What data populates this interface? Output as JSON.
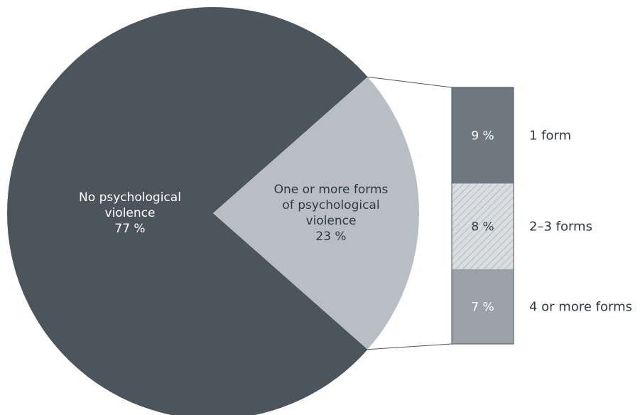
{
  "chart_data": {
    "type": "bar-of-pie",
    "pie": [
      {
        "label_lines": [
          "No psychological",
          "violence"
        ],
        "value": 77,
        "value_label": "77 %",
        "color": "#4b555b"
      },
      {
        "label_lines": [
          "One or more forms",
          "of psychological",
          "violence"
        ],
        "value": 23,
        "value_label": "23 %",
        "color": "#b8bfc4"
      }
    ],
    "breakdown": [
      {
        "category": "1 form",
        "value": 9,
        "value_label": "9 %",
        "fill": "solid",
        "color": "#6e787e"
      },
      {
        "category": "2–3 forms",
        "value": 8,
        "value_label": "8 %",
        "fill": "hatched",
        "color": "#d3d8db"
      },
      {
        "category": "4 or more forms",
        "value": 7,
        "value_label": "7 %",
        "fill": "solid",
        "color": "#9aa2a7"
      }
    ]
  }
}
